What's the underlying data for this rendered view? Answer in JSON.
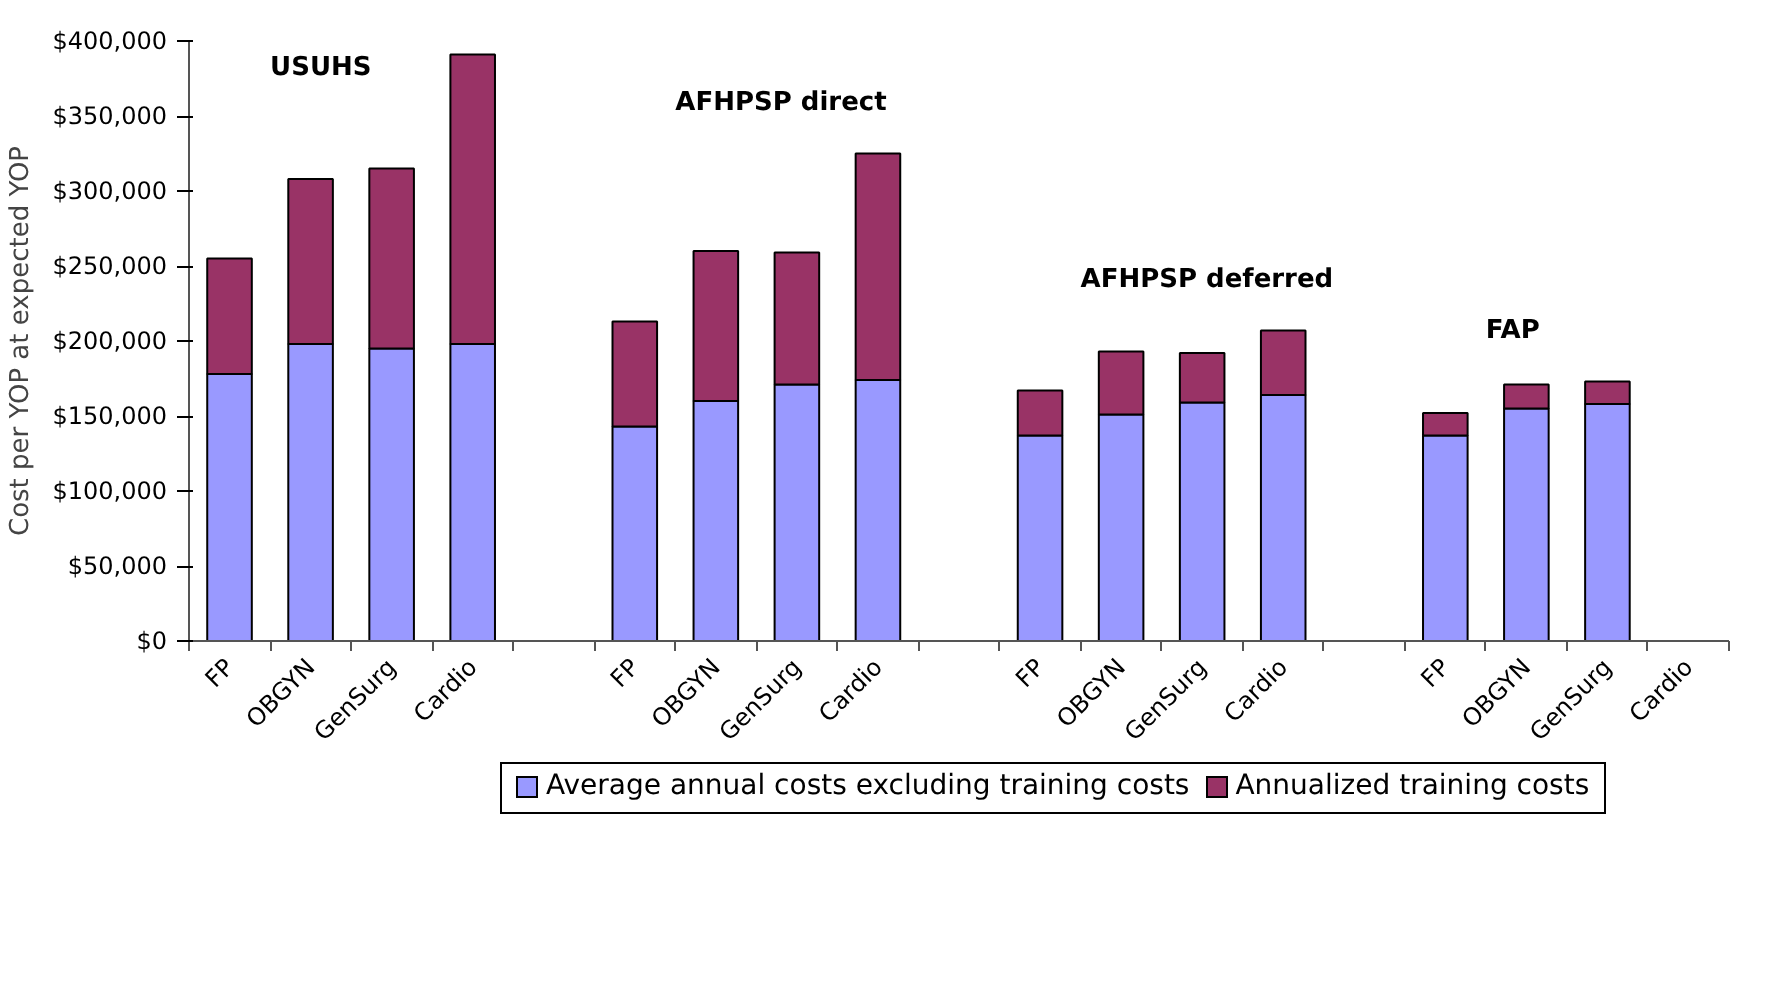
{
  "chart_data": {
    "type": "bar",
    "stacked": true,
    "ylabel": "Cost per YOP at expected YOP",
    "categories": [
      "FP",
      "OBGYN",
      "GenSurg",
      "Cardio",
      null,
      "FP",
      "OBGYN",
      "GenSurg",
      "Cardio",
      null,
      "FP",
      "OBGYN",
      "GenSurg",
      "Cardio",
      null,
      "FP",
      "OBGYN",
      "GenSurg",
      "Cardio"
    ],
    "series": [
      {
        "name": "Average annual costs excluding training costs",
        "color": "#9999ff",
        "values": [
          178000,
          198000,
          195000,
          198000,
          null,
          143000,
          160000,
          171000,
          174000,
          null,
          137000,
          151000,
          159000,
          164000,
          null,
          137000,
          155000,
          158000,
          null
        ]
      },
      {
        "name": "Annualized training costs",
        "color": "#993366",
        "values": [
          77000,
          110000,
          120000,
          193000,
          null,
          70000,
          100000,
          88000,
          151000,
          null,
          30000,
          42000,
          33000,
          43000,
          null,
          15000,
          16000,
          15000,
          null
        ]
      }
    ],
    "annotations": [
      "USUHS",
      "AFHPSP direct",
      "AFHPSP deferred",
      "FAP"
    ],
    "ylim": [
      0,
      400000
    ],
    "yticks": [
      {
        "value": 0,
        "label": "$0"
      },
      {
        "value": 50000,
        "label": "$50,000"
      },
      {
        "value": 100000,
        "label": "$100,000"
      },
      {
        "value": 150000,
        "label": "$150,000"
      },
      {
        "value": 200000,
        "label": "$200,000"
      },
      {
        "value": 250000,
        "label": "$250,000"
      },
      {
        "value": 300000,
        "label": "$300,000"
      },
      {
        "value": 350000,
        "label": "$350,000"
      },
      {
        "value": 400000,
        "label": "$400,000"
      }
    ],
    "grid": false,
    "legend": "bottom"
  }
}
